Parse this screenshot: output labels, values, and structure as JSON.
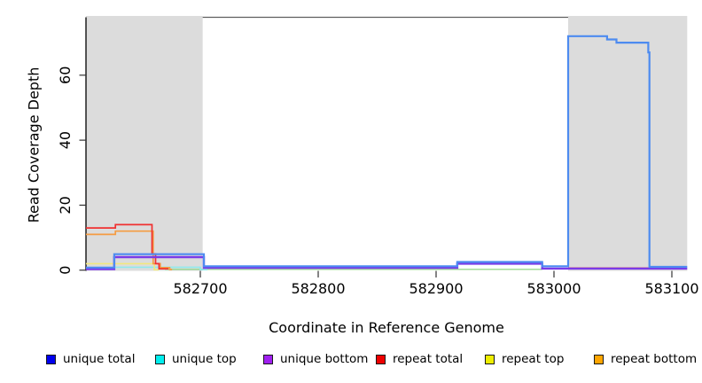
{
  "chart_data": {
    "type": "line",
    "subtype": "step-coverage",
    "title": "",
    "xlabel": "Coordinate in Reference Genome",
    "ylabel": "Read Coverage Depth",
    "xlim": [
      582603,
      583113
    ],
    "ylim": [
      0,
      77
    ],
    "x_ticks": [
      582700,
      582800,
      582900,
      583000,
      583100
    ],
    "y_ticks": [
      0,
      20,
      40,
      60
    ],
    "grid": false,
    "legend_position": "bottom",
    "shaded_regions": [
      {
        "name": "left-repeat-region",
        "x0": 582603,
        "x1": 582702,
        "color": "#DCDCDC"
      },
      {
        "name": "right-repeat-region",
        "x0": 583012,
        "x1": 583113,
        "color": "#DCDCDC"
      }
    ],
    "series": [
      {
        "name": "overlap-zero-line-artifact",
        "legend": false,
        "draw_color": "#98D78E",
        "width": 1.4,
        "segments": [
          [
            [
              582670,
              0.25
            ],
            [
              582990,
              0.25
            ]
          ]
        ]
      },
      {
        "name": "unique top",
        "legend": true,
        "legend_color": "#00EEEE",
        "draw_color": "#8FE9EC",
        "width": 1.6,
        "segments": [
          [
            [
              582627,
              0.9
            ],
            [
              582700,
              0.15
            ],
            [
              582706,
              0.15
            ]
          ]
        ]
      },
      {
        "name": "repeat top",
        "legend": true,
        "legend_color": "#EEEE00",
        "draw_color": "#F2E87C",
        "width": 1.6,
        "segments": [
          [
            [
              582603,
              2
            ],
            [
              582661,
              0.1
            ],
            [
              582665,
              0.1
            ]
          ]
        ]
      },
      {
        "name": "repeat bottom",
        "legend": true,
        "legend_color": "#FFA500",
        "draw_color": "#F59C42",
        "width": 1.7,
        "segments": [
          [
            [
              582603,
              11
            ],
            [
              582628,
              12
            ],
            [
              582660,
              2
            ],
            [
              582666,
              0.8
            ],
            [
              582674,
              0.2
            ],
            [
              582676,
              0.2
            ]
          ]
        ]
      },
      {
        "name": "repeat total",
        "legend": true,
        "legend_color": "#EE0000",
        "draw_color": "#F03030",
        "width": 1.7,
        "segments": [
          [
            [
              582603,
              13
            ],
            [
              582628,
              14
            ],
            [
              582659,
              5
            ],
            [
              582662,
              2
            ],
            [
              582665,
              0.4
            ],
            [
              582673,
              0.4
            ]
          ],
          [
            [
              583012,
              0.6
            ],
            [
              583081,
              0.6
            ]
          ]
        ]
      },
      {
        "name": "unique bottom",
        "legend": true,
        "legend_color": "#A020F0",
        "draw_color": "#7A3BE8",
        "width": 2.4,
        "segments": [
          [
            [
              582603,
              0.3
            ],
            [
              582627,
              4
            ],
            [
              582703,
              0.7
            ],
            [
              582918,
              2
            ],
            [
              582990,
              0.5
            ],
            [
              583113,
              0.5
            ]
          ]
        ]
      },
      {
        "name": "unique total",
        "legend": true,
        "legend_color": "#0000EE",
        "draw_color": "#4D8BF0",
        "width": 2.2,
        "segments": [
          [
            [
              582603,
              0.8
            ],
            [
              582627,
              4.9
            ],
            [
              582703,
              1.2
            ],
            [
              582918,
              2.5
            ],
            [
              582990,
              1.2
            ],
            [
              583012,
              72
            ],
            [
              583045,
              71
            ],
            [
              583053,
              70
            ],
            [
              583080,
              67
            ],
            [
              583081,
              1
            ],
            [
              583113,
              1
            ]
          ]
        ]
      }
    ],
    "legend": [
      {
        "label": "unique total",
        "color": "#0000EE"
      },
      {
        "label": "unique top",
        "color": "#00EEEE"
      },
      {
        "label": "unique bottom",
        "color": "#A020F0"
      },
      {
        "label": "repeat total",
        "color": "#EE0000"
      },
      {
        "label": "repeat top",
        "color": "#EEEE00"
      },
      {
        "label": "repeat bottom",
        "color": "#FFA500"
      }
    ]
  },
  "figure": {
    "x_axis_title": "Coordinate in Reference Genome",
    "y_axis_title": "Read Coverage Depth"
  }
}
